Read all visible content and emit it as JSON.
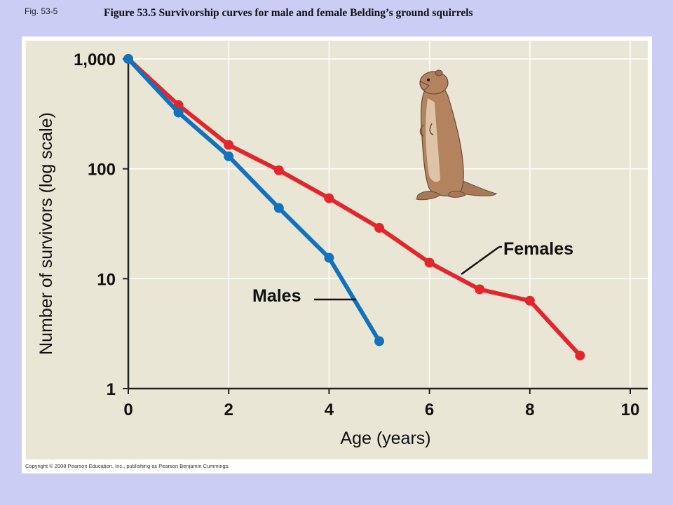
{
  "header": {
    "fig_label": "Fig. 53-5",
    "title": "Figure 53.5 Survivorship curves for male and female Belding’s ground squirrels"
  },
  "footer": {
    "copyright": "Copyright © 2008 Pearson Education, Inc., publishing as Pearson Benjamin Cummings."
  },
  "colors": {
    "page_background": "#cccdf5",
    "plot_background": "#e9e6d5",
    "grid": "#ffffff",
    "females": "#e3262e",
    "males": "#1272bb"
  },
  "illustration": {
    "icon": "ground-squirrel-icon"
  },
  "chart_data": {
    "type": "line",
    "xlabel": "Age (years)",
    "ylabel": "Number of survivors (log scale)",
    "x_scale": "linear",
    "y_scale": "log",
    "xlim": [
      0,
      10
    ],
    "ylim": [
      1,
      1000
    ],
    "xticks": [
      0,
      2,
      4,
      6,
      8,
      10
    ],
    "xtick_labels": [
      "0",
      "2",
      "4",
      "6",
      "8",
      "10"
    ],
    "yticks": [
      1,
      10,
      100,
      1000
    ],
    "ytick_labels": [
      "1",
      "10",
      "100",
      "1,000"
    ],
    "grid": true,
    "series": [
      {
        "name": "Females",
        "color": "#e3262e",
        "x": [
          0,
          1,
          2,
          3,
          4,
          5,
          6,
          7,
          8,
          9
        ],
        "y": [
          1000,
          380,
          165,
          97,
          54,
          29,
          14,
          8,
          6.3,
          2
        ]
      },
      {
        "name": "Males",
        "color": "#1272bb",
        "x": [
          0,
          1,
          2,
          3,
          4,
          5
        ],
        "y": [
          1000,
          325,
          130,
          44,
          15.5,
          2.7
        ]
      }
    ]
  }
}
